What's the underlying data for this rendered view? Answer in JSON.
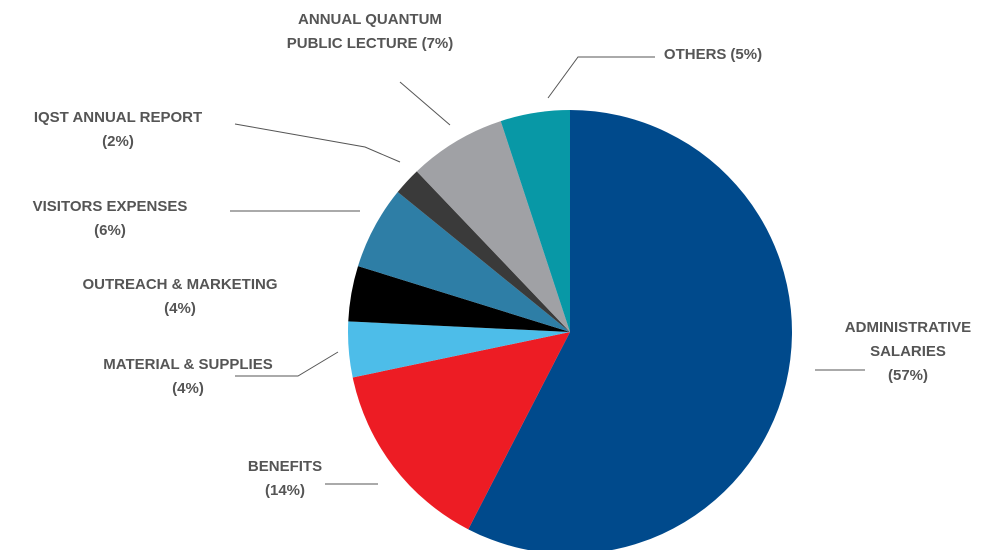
{
  "chart_data": {
    "type": "pie",
    "categories": [
      "ADMINISTRATIVE SALARIES",
      "BENEFITS",
      "MATERIAL & SUPPLIES",
      "OUTREACH & MARKETING",
      "VISITORS EXPENSES",
      "IQST ANNUAL REPORT",
      "ANNUAL QUANTUM PUBLIC LECTURE",
      "OTHERS"
    ],
    "values": [
      57,
      14,
      4,
      4,
      6,
      2,
      7,
      5
    ],
    "value_labels": [
      "(57%)",
      "(14%)",
      "(4%)",
      "(4%)",
      "(6%)",
      "(2%)",
      "(7%)",
      "(5%)"
    ],
    "colors": [
      "#004a8c",
      "#ed1c24",
      "#4dbde9",
      "#000000",
      "#2e7ea6",
      "#3a3a3a",
      "#a0a1a5",
      "#0898a6"
    ]
  }
}
